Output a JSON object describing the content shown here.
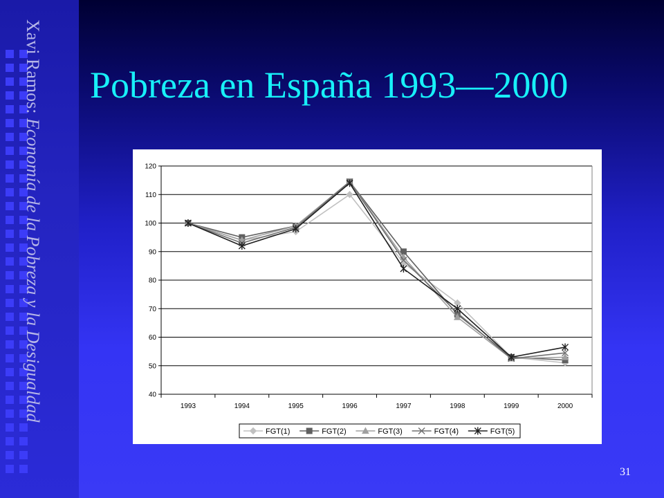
{
  "sidebar": {
    "author": "Xavi Ramos: ",
    "subtitle": "Economía de la Pobreza y la Desigualdad"
  },
  "title": "Pobreza en España 1993—2000",
  "page_number": "31",
  "colors": {
    "title": "#18f0f8",
    "background": "#3434f4"
  },
  "chart_data": {
    "type": "line",
    "title": "",
    "xlabel": "",
    "ylabel": "",
    "categories": [
      "1993",
      "1994",
      "1995",
      "1996",
      "1997",
      "1998",
      "1999",
      "2000"
    ],
    "ylim": [
      40,
      120
    ],
    "yticks": [
      40,
      50,
      60,
      70,
      80,
      90,
      100,
      110,
      120
    ],
    "grid": "horizontal",
    "legend_position": "bottom",
    "series": [
      {
        "name": "FGT(1)",
        "marker": "diamond",
        "color": "#c0c0c0",
        "values": [
          100,
          94,
          97,
          110,
          86,
          72,
          53,
          51
        ]
      },
      {
        "name": "FGT(2)",
        "marker": "square",
        "color": "#606060",
        "values": [
          100,
          95,
          99,
          114.5,
          90,
          68,
          53,
          52
        ]
      },
      {
        "name": "FGT(3)",
        "marker": "triangle",
        "color": "#a0a0a0",
        "values": [
          100,
          94,
          99,
          114.5,
          88,
          67,
          52.5,
          53
        ]
      },
      {
        "name": "FGT(4)",
        "marker": "x",
        "color": "#707070",
        "values": [
          100,
          93,
          98.5,
          114.5,
          87,
          68.5,
          52.5,
          54.5
        ]
      },
      {
        "name": "FGT(5)",
        "marker": "star",
        "color": "#202020",
        "values": [
          100,
          92,
          98,
          114,
          84,
          70,
          53,
          56.5
        ]
      }
    ]
  }
}
